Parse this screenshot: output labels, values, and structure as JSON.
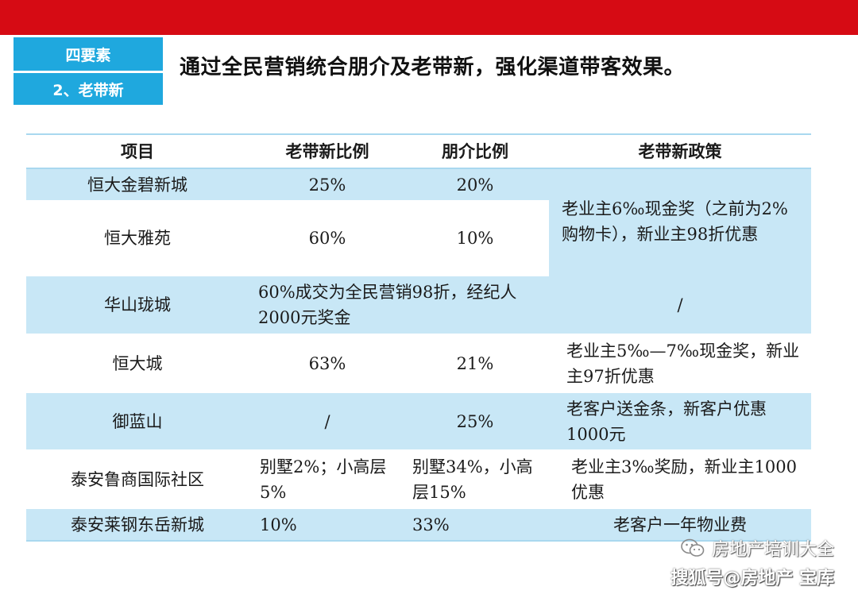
{
  "section": {
    "category": "四要素",
    "item": "2、老带新"
  },
  "title": "通过全民营销统合朋介及老带新，强化渠道带客效果。",
  "table": {
    "headers": [
      "项目",
      "老带新比例",
      "朋介比例",
      "老带新政策"
    ],
    "rows": [
      {
        "project": "恒大金碧新城",
        "ratio": "25%",
        "friend": "20%"
      },
      {
        "project": "恒大雅苑",
        "ratio": "60%",
        "friend": "10%"
      },
      {
        "project": "华山珑城",
        "merged": "60%成交为全民营销98折，经纪人2000元奖金",
        "policy": "/"
      },
      {
        "project": "恒大城",
        "ratio": "63%",
        "friend": "21%",
        "policy": "老业主5‰—7‰现金奖，新业主97折优惠"
      },
      {
        "project": "御蓝山",
        "ratio": "/",
        "friend": "25%",
        "policy": "老客户送金条，新客户优惠1000元"
      },
      {
        "project": "泰安鲁商国际社区",
        "ratio": "别墅2%；小高层5%",
        "friend": "别墅34%，小高层15%",
        "policy": "老业主3‰奖励，新业主1000优惠"
      },
      {
        "project": "泰安莱钢东岳新城",
        "ratio": "10%",
        "friend": "33%",
        "policy": "老客户一年物业费"
      }
    ],
    "shared_policy": "老业主6‰现金奖（之前为2%购物卡），新业主98折优惠"
  },
  "watermark": {
    "line1": "房地产培训大全",
    "line2": "搜狐号@房地产 宝库",
    "icon": "wechat-icon"
  },
  "colors": {
    "top_bar": "#d60b14",
    "accent_blue": "#1fa8de",
    "row_band": "#c8e7f6"
  }
}
